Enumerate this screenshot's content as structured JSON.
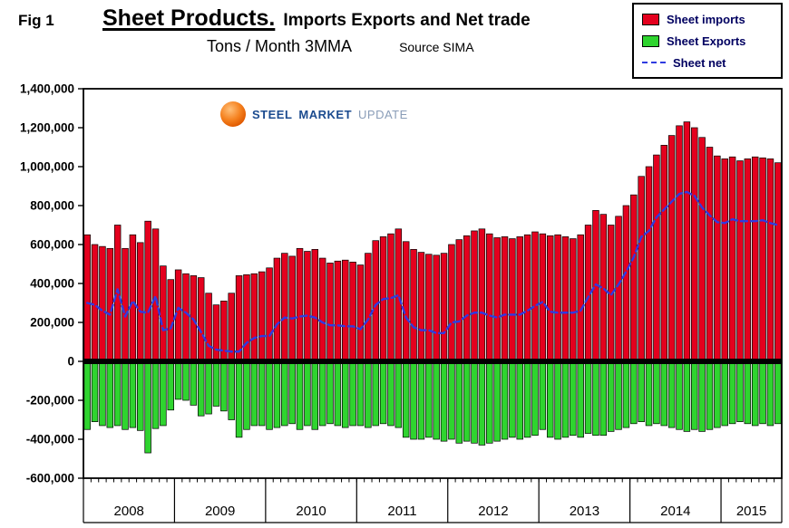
{
  "figure": {
    "fig_label": "Fig 1",
    "title_main": "Sheet Products.",
    "title_rest": "Imports Exports and Net trade",
    "subtitle": "Tons / Month 3MMA",
    "source": "Source SIMA"
  },
  "logo": {
    "steel": "STEEL",
    "market": "MARKET",
    "update": "UPDATE"
  },
  "legend": {
    "items": [
      {
        "label": "Sheet imports",
        "color": "#E4001E",
        "swatch": "bar"
      },
      {
        "label": "Sheet Exports",
        "color": "#2FD42F",
        "swatch": "bar"
      },
      {
        "label": "Sheet net",
        "color": "#2F3BE0",
        "swatch": "dashed-line"
      }
    ]
  },
  "chart_data": {
    "type": "bar",
    "title": "Sheet Products. Imports Exports and Net trade",
    "subtitle": "Tons / Month 3MMA",
    "source": "Source SIMA",
    "unit": "tons per month (3MMA)",
    "x_start": "2008-01",
    "x_end": "2015-08",
    "grid": false,
    "legend_position": "top-right",
    "ylim": [
      -600000,
      1400000
    ],
    "ytick_step": 200000,
    "years": [
      {
        "label": "2008",
        "months": 12
      },
      {
        "label": "2009",
        "months": 12
      },
      {
        "label": "2010",
        "months": 12
      },
      {
        "label": "2011",
        "months": 12
      },
      {
        "label": "2012",
        "months": 12
      },
      {
        "label": "2013",
        "months": 12
      },
      {
        "label": "2014",
        "months": 12
      },
      {
        "label": "2015",
        "months": 8
      }
    ],
    "series": [
      {
        "name": "Sheet imports",
        "type": "bar",
        "color": "#E4001E",
        "values": [
          650000,
          600000,
          590000,
          580000,
          700000,
          580000,
          650000,
          610000,
          720000,
          680000,
          490000,
          420000,
          470000,
          450000,
          440000,
          430000,
          350000,
          290000,
          310000,
          350000,
          440000,
          445000,
          450000,
          460000,
          480000,
          530000,
          555000,
          540000,
          580000,
          565000,
          575000,
          530000,
          505000,
          515000,
          520000,
          510000,
          495000,
          555000,
          620000,
          640000,
          655000,
          680000,
          615000,
          575000,
          560000,
          550000,
          545000,
          555000,
          600000,
          625000,
          645000,
          670000,
          680000,
          655000,
          635000,
          640000,
          630000,
          640000,
          650000,
          665000,
          655000,
          645000,
          650000,
          640000,
          630000,
          650000,
          700000,
          775000,
          755000,
          700000,
          745000,
          800000,
          855000,
          950000,
          1000000,
          1060000,
          1110000,
          1160000,
          1210000,
          1230000,
          1200000,
          1150000,
          1100000,
          1055000,
          1040000,
          1050000,
          1030000,
          1040000,
          1050000,
          1045000,
          1040000,
          1020000
        ]
      },
      {
        "name": "Sheet Exports",
        "type": "bar",
        "color": "#2FD42F",
        "values": [
          -350000,
          -310000,
          -330000,
          -340000,
          -330000,
          -350000,
          -340000,
          -355000,
          -470000,
          -345000,
          -330000,
          -250000,
          -195000,
          -200000,
          -225000,
          -280000,
          -270000,
          -230000,
          -255000,
          -300000,
          -390000,
          -350000,
          -330000,
          -330000,
          -350000,
          -340000,
          -330000,
          -320000,
          -350000,
          -330000,
          -350000,
          -330000,
          -320000,
          -330000,
          -340000,
          -330000,
          -330000,
          -340000,
          -330000,
          -320000,
          -330000,
          -340000,
          -390000,
          -400000,
          -400000,
          -390000,
          -400000,
          -410000,
          -400000,
          -420000,
          -410000,
          -420000,
          -430000,
          -420000,
          -410000,
          -400000,
          -390000,
          -400000,
          -390000,
          -380000,
          -350000,
          -390000,
          -400000,
          -390000,
          -380000,
          -390000,
          -370000,
          -380000,
          -380000,
          -360000,
          -350000,
          -340000,
          -320000,
          -310000,
          -330000,
          -320000,
          -330000,
          -340000,
          -350000,
          -360000,
          -350000,
          -360000,
          -350000,
          -340000,
          -330000,
          -320000,
          -310000,
          -320000,
          -330000,
          -320000,
          -330000,
          -320000
        ]
      },
      {
        "name": "Sheet net",
        "type": "dashed-line",
        "color": "#2F3BE0",
        "values": [
          300000,
          290000,
          260000,
          240000,
          370000,
          230000,
          310000,
          255000,
          250000,
          335000,
          160000,
          170000,
          275000,
          250000,
          215000,
          150000,
          80000,
          60000,
          55000,
          50000,
          50000,
          95000,
          120000,
          130000,
          130000,
          190000,
          225000,
          220000,
          230000,
          235000,
          225000,
          200000,
          185000,
          185000,
          180000,
          180000,
          165000,
          215000,
          290000,
          320000,
          325000,
          340000,
          225000,
          175000,
          160000,
          160000,
          145000,
          145000,
          200000,
          205000,
          235000,
          250000,
          250000,
          235000,
          225000,
          240000,
          240000,
          240000,
          260000,
          285000,
          305000,
          255000,
          250000,
          250000,
          250000,
          260000,
          330000,
          395000,
          375000,
          340000,
          395000,
          460000,
          535000,
          640000,
          670000,
          740000,
          780000,
          820000,
          860000,
          870000,
          850000,
          790000,
          750000,
          715000,
          710000,
          730000,
          720000,
          720000,
          720000,
          725000,
          710000,
          700000
        ]
      }
    ]
  }
}
